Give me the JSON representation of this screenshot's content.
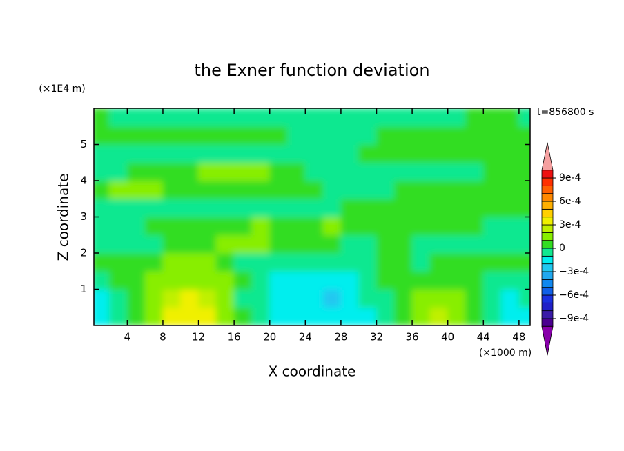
{
  "chart_data": {
    "type": "contour",
    "title": "the Exner function deviation",
    "x_label": "X coordinate",
    "y_label": "Z coordinate",
    "x_unit": "(×1000 m)",
    "y_unit": "(×1E4 m)",
    "time_label": "t=856800 s",
    "x": [
      1,
      3,
      5,
      7,
      9,
      11,
      13,
      15,
      17,
      19,
      21,
      23,
      25,
      27,
      29,
      31,
      33,
      35,
      37,
      39,
      41,
      43,
      45,
      47,
      49
    ],
    "y": [
      0.25,
      0.75,
      1.25,
      1.75,
      2.25,
      2.75,
      3.25,
      3.75,
      4.25,
      4.75,
      5.25,
      5.75
    ],
    "values": [
      [
        -0.00015,
        -5e-05,
        5e-05,
        0.00015,
        0.00035,
        0.00035,
        0.00035,
        0.00015,
        5e-05,
        -5e-05,
        -0.00015,
        -0.00015,
        -0.00015,
        -0.00015,
        -0.00015,
        -0.00015,
        -5e-05,
        5e-05,
        0.00015,
        0.00025,
        0.00015,
        5e-05,
        -5e-05,
        -0.00015,
        -0.00015
      ],
      [
        -0.00015,
        -5e-05,
        5e-05,
        0.00015,
        0.00025,
        0.00035,
        0.00025,
        0.00015,
        -5e-05,
        -5e-05,
        -0.00015,
        -0.00015,
        -0.00015,
        -0.00025,
        -0.00015,
        -5e-05,
        -5e-05,
        5e-05,
        0.00015,
        0.00015,
        0.00015,
        5e-05,
        -5e-05,
        -0.00015,
        -5e-05
      ],
      [
        -5e-05,
        5e-05,
        5e-05,
        0.00015,
        0.00015,
        0.00015,
        0.00015,
        0.00015,
        5e-05,
        -5e-05,
        -0.00015,
        -0.00015,
        -0.00015,
        -0.00015,
        -0.00015,
        -5e-05,
        5e-05,
        5e-05,
        5e-05,
        5e-05,
        5e-05,
        5e-05,
        -5e-05,
        -5e-05,
        -5e-05
      ],
      [
        5e-05,
        5e-05,
        5e-05,
        5e-05,
        0.00015,
        0.00015,
        0.00015,
        5e-05,
        -5e-05,
        -5e-05,
        -5e-05,
        -5e-05,
        -5e-05,
        -5e-05,
        -5e-05,
        -5e-05,
        5e-05,
        5e-05,
        -5e-05,
        5e-05,
        5e-05,
        5e-05,
        5e-05,
        5e-05,
        5e-05
      ],
      [
        -5e-05,
        -5e-05,
        -5e-05,
        -5e-05,
        5e-05,
        5e-05,
        5e-05,
        0.00015,
        0.00015,
        0.00015,
        5e-05,
        5e-05,
        5e-05,
        5e-05,
        -5e-05,
        -5e-05,
        5e-05,
        5e-05,
        -5e-05,
        -5e-05,
        -5e-05,
        -5e-05,
        -5e-05,
        -5e-05,
        -5e-05
      ],
      [
        -5e-05,
        -5e-05,
        -5e-05,
        5e-05,
        5e-05,
        5e-05,
        5e-05,
        5e-05,
        5e-05,
        0.00015,
        5e-05,
        5e-05,
        5e-05,
        0.00015,
        5e-05,
        5e-05,
        5e-05,
        5e-05,
        5e-05,
        5e-05,
        5e-05,
        5e-05,
        -5e-05,
        -5e-05,
        -5e-05
      ],
      [
        -5e-05,
        -5e-05,
        -5e-05,
        -5e-05,
        -5e-05,
        -5e-05,
        -5e-05,
        -5e-05,
        -5e-05,
        -5e-05,
        -5e-05,
        -5e-05,
        -5e-05,
        -5e-05,
        5e-05,
        5e-05,
        5e-05,
        5e-05,
        5e-05,
        5e-05,
        5e-05,
        5e-05,
        5e-05,
        5e-05,
        5e-05
      ],
      [
        5e-05,
        0.00015,
        0.00015,
        0.00015,
        5e-05,
        5e-05,
        5e-05,
        5e-05,
        5e-05,
        5e-05,
        5e-05,
        5e-05,
        5e-05,
        -5e-05,
        -5e-05,
        -5e-05,
        -5e-05,
        5e-05,
        5e-05,
        5e-05,
        5e-05,
        5e-05,
        5e-05,
        5e-05,
        5e-05
      ],
      [
        -5e-05,
        -5e-05,
        5e-05,
        5e-05,
        5e-05,
        5e-05,
        0.00015,
        0.00015,
        0.00015,
        0.00015,
        5e-05,
        5e-05,
        -5e-05,
        -5e-05,
        -5e-05,
        -5e-05,
        -5e-05,
        -5e-05,
        -5e-05,
        -5e-05,
        -5e-05,
        -5e-05,
        5e-05,
        5e-05,
        5e-05
      ],
      [
        -5e-05,
        -5e-05,
        -5e-05,
        -5e-05,
        -5e-05,
        -5e-05,
        -5e-05,
        -5e-05,
        -5e-05,
        -5e-05,
        -5e-05,
        -5e-05,
        -5e-05,
        -5e-05,
        -5e-05,
        5e-05,
        5e-05,
        5e-05,
        5e-05,
        5e-05,
        5e-05,
        5e-05,
        5e-05,
        5e-05,
        5e-05
      ],
      [
        5e-05,
        5e-05,
        5e-05,
        5e-05,
        5e-05,
        5e-05,
        5e-05,
        5e-05,
        5e-05,
        5e-05,
        5e-05,
        -5e-05,
        -5e-05,
        -5e-05,
        -5e-05,
        -5e-05,
        5e-05,
        5e-05,
        5e-05,
        5e-05,
        5e-05,
        5e-05,
        5e-05,
        5e-05,
        5e-05
      ],
      [
        5e-05,
        -5e-05,
        -5e-05,
        -5e-05,
        -5e-05,
        -5e-05,
        -5e-05,
        -5e-05,
        -5e-05,
        -5e-05,
        -5e-05,
        -5e-05,
        -5e-05,
        -5e-05,
        -5e-05,
        -5e-05,
        -5e-05,
        -5e-05,
        -5e-05,
        -5e-05,
        -5e-05,
        5e-05,
        5e-05,
        5e-05,
        -5e-05
      ]
    ],
    "xlim": [
      0.25,
      49.25
    ],
    "ylim": [
      0,
      6
    ],
    "xticks": [
      4,
      8,
      12,
      16,
      20,
      24,
      28,
      32,
      36,
      40,
      44,
      48
    ],
    "yticks": [
      1,
      2,
      3,
      4,
      5
    ],
    "colorbar": {
      "levels": [
        -0.001,
        -0.0009,
        -0.0008,
        -0.0007,
        -0.0006,
        -0.0005,
        -0.0004,
        -0.0003,
        -0.0002,
        -0.0001,
        0,
        0.0001,
        0.0002,
        0.0003,
        0.0004,
        0.0005,
        0.0006,
        0.0007,
        0.0008,
        0.0009,
        0.001
      ],
      "colors": [
        "#4b0090",
        "#3a1aa8",
        "#2020c8",
        "#1a30e0",
        "#1060e8",
        "#1088f0",
        "#20a8f0",
        "#20c8f0",
        "#00eeee",
        "#10e890",
        "#33dd22",
        "#88ee00",
        "#c0f000",
        "#f0f000",
        "#ffd000",
        "#ffb000",
        "#ff8800",
        "#ff6000",
        "#ff3000",
        "#ee1010"
      ],
      "under_color": "#8800aa",
      "over_color": "#f5a0a0",
      "ticks": [
        {
          "value": 0.0009,
          "label": "9e-4"
        },
        {
          "value": 0.0006,
          "label": "6e-4"
        },
        {
          "value": 0.0003,
          "label": "3e-4"
        },
        0,
        {
          "value": -0.0003,
          "label": "−3e-4"
        },
        {
          "value": -0.0006,
          "label": "−6e-4"
        },
        {
          "value": -0.0009,
          "label": "−9e-4"
        }
      ]
    }
  }
}
